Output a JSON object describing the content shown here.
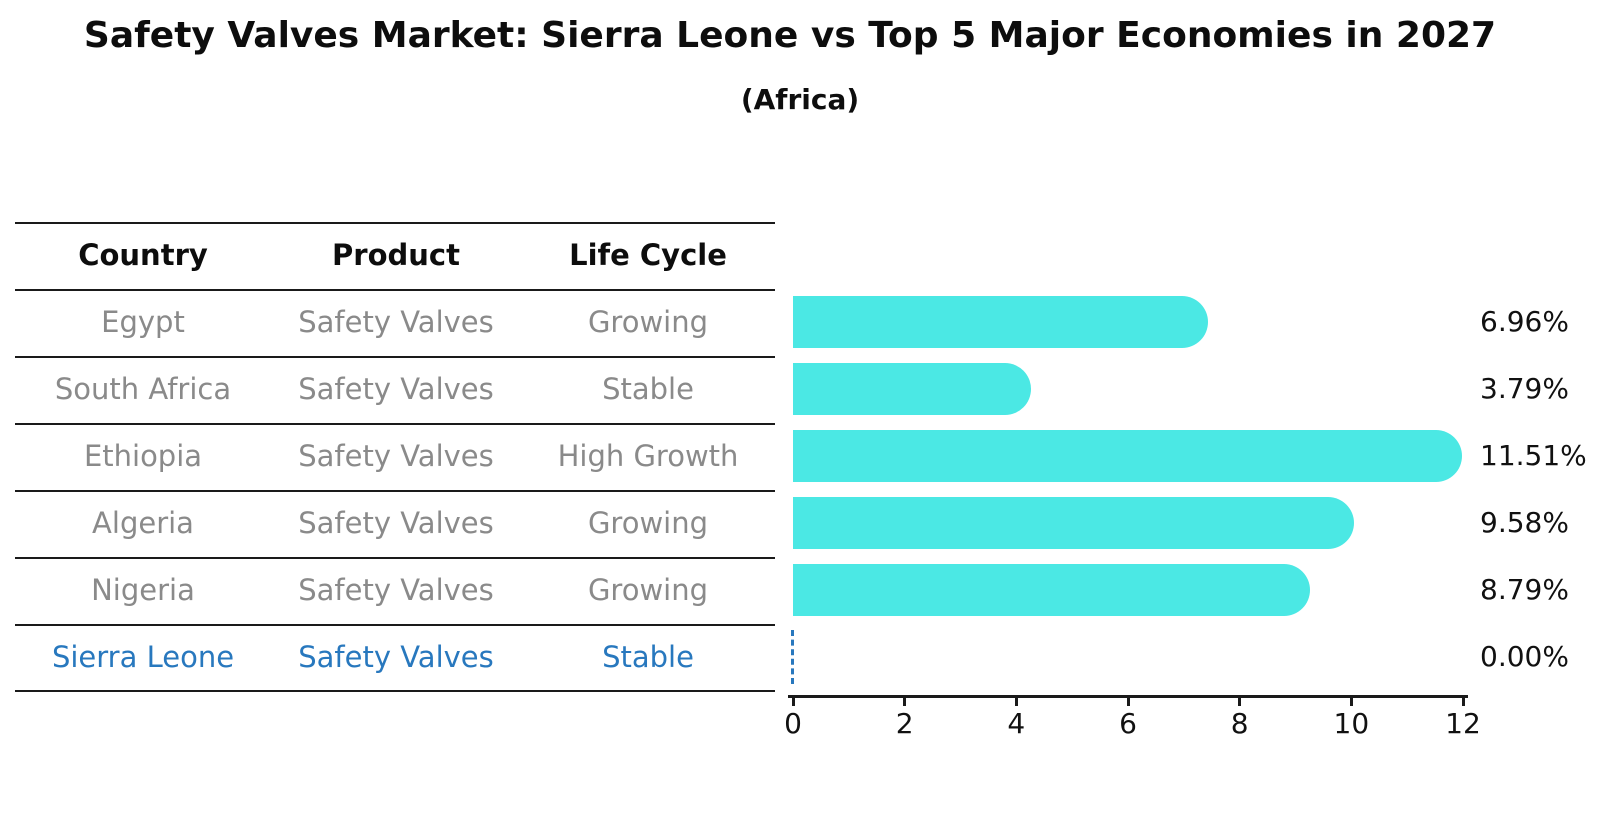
{
  "title": "Safety Valves Market: Sierra Leone vs Top 5 Major Economies in 2027",
  "subtitle": "(Africa)",
  "table": {
    "headers": [
      "Country",
      "Product",
      "Life Cycle"
    ],
    "rows": [
      {
        "country": "Egypt",
        "product": "Safety Valves",
        "life_cycle": "Growing",
        "highlight": false
      },
      {
        "country": "South Africa",
        "product": "Safety Valves",
        "life_cycle": "Stable",
        "highlight": false
      },
      {
        "country": "Ethiopia",
        "product": "Safety Valves",
        "life_cycle": "High Growth",
        "highlight": false
      },
      {
        "country": "Algeria",
        "product": "Safety Valves",
        "life_cycle": "Growing",
        "highlight": false
      },
      {
        "country": "Nigeria",
        "product": "Safety Valves",
        "life_cycle": "Growing",
        "highlight": true
      }
    ],
    "highlight_row": {
      "country": "Sierra Leone",
      "product": "Safety Valves",
      "life_cycle": "Stable",
      "highlight": true
    }
  },
  "chart_data": {
    "type": "bar",
    "orientation": "horizontal",
    "title": "Safety Valves Market: Sierra Leone vs Top 5 Major Economies in 2027",
    "subtitle": "(Africa)",
    "categories": [
      "Egypt",
      "South Africa",
      "Ethiopia",
      "Algeria",
      "Nigeria",
      "Sierra Leone"
    ],
    "values": [
      6.96,
      3.79,
      11.51,
      9.58,
      8.79,
      0.0
    ],
    "value_labels": [
      "6.96%",
      "3.79%",
      "11.51%",
      "9.58%",
      "8.79%",
      "0.00%"
    ],
    "xlabel": "",
    "ylabel": "",
    "xlim": [
      0,
      12
    ],
    "x_ticks": [
      0,
      2,
      4,
      6,
      8,
      10,
      12
    ],
    "grid": false,
    "legend": false,
    "zero_value_style": "dashed-outline"
  },
  "colors": {
    "bar": "#4be8e4",
    "highlight": "#2878be",
    "row_text": "#8a8a8a",
    "header_text": "#0d0d0d",
    "axis": "#1a1a1a",
    "value_label": "#111111",
    "background": "#ffffff"
  }
}
